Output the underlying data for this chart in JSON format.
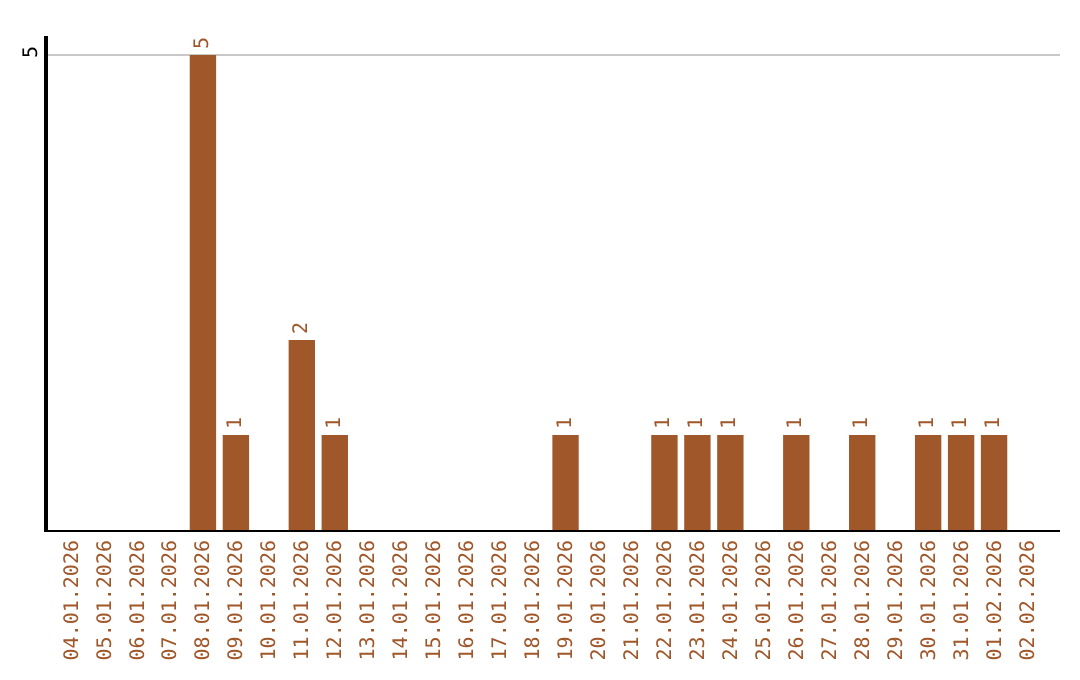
{
  "chart_data": {
    "type": "bar",
    "categories": [
      "04.01.2026",
      "05.01.2026",
      "06.01.2026",
      "07.01.2026",
      "08.01.2026",
      "09.01.2026",
      "10.01.2026",
      "11.01.2026",
      "12.01.2026",
      "13.01.2026",
      "14.01.2026",
      "15.01.2026",
      "16.01.2026",
      "17.01.2026",
      "18.01.2026",
      "19.01.2026",
      "20.01.2026",
      "21.01.2026",
      "22.01.2026",
      "23.01.2026",
      "24.01.2026",
      "25.01.2026",
      "26.01.2026",
      "27.01.2026",
      "28.01.2026",
      "29.01.2026",
      "30.01.2026",
      "31.01.2026",
      "01.02.2026",
      "02.02.2026"
    ],
    "values": [
      0,
      0,
      0,
      0,
      5,
      1,
      0,
      2,
      1,
      0,
      0,
      0,
      0,
      0,
      0,
      1,
      0,
      0,
      1,
      1,
      1,
      0,
      1,
      0,
      1,
      0,
      1,
      1,
      1,
      0
    ],
    "value_labels": [
      null,
      null,
      null,
      null,
      "5",
      "1",
      null,
      "2",
      "1",
      null,
      null,
      null,
      null,
      null,
      null,
      "1",
      null,
      null,
      "1",
      "1",
      "1",
      null,
      "1",
      null,
      "1",
      null,
      "1",
      "1",
      "1",
      null
    ],
    "color": "#a0572a",
    "ylim": [
      0,
      5.2
    ],
    "yticks": [
      5
    ],
    "grid": "y"
  }
}
